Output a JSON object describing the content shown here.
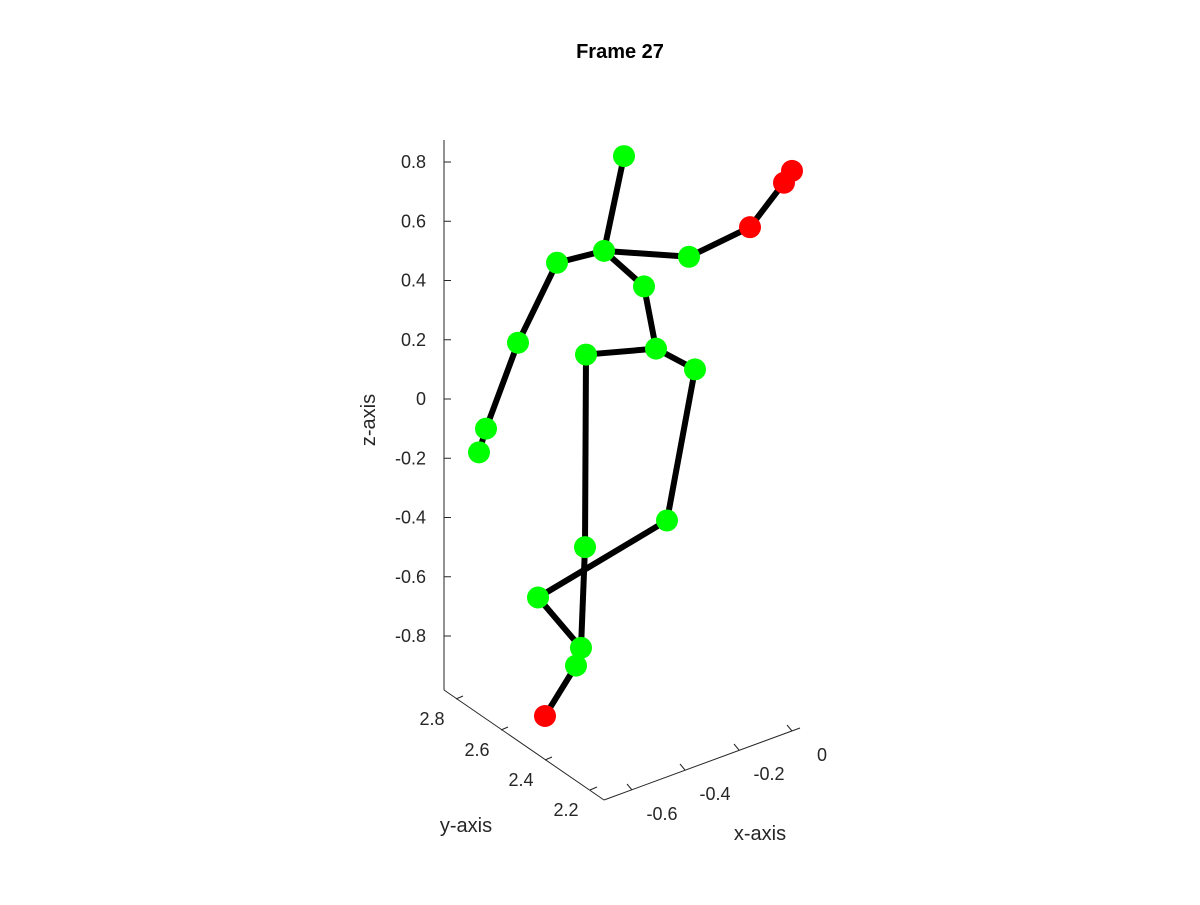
{
  "chart_data": {
    "type": "scatter3d",
    "title": "Frame 27",
    "xlabel": "x-axis",
    "ylabel": "y-axis",
    "zlabel": "z-axis",
    "xticks": [
      "-0.6",
      "-0.4",
      "-0.2",
      "0"
    ],
    "yticks": [
      "2.2",
      "2.4",
      "2.6",
      "2.8"
    ],
    "zticks": [
      "0.8",
      "0.6",
      "0.4",
      "0.2",
      "0",
      "-0.2",
      "-0.4",
      "-0.6",
      "-0.8"
    ],
    "zlim": [
      -1.0,
      0.87
    ],
    "colors": {
      "normal": "#00ff00",
      "highlight": "#ff0000",
      "bone": "#000000"
    },
    "joints": [
      {
        "id": "head",
        "z": 0.82,
        "status": "normal"
      },
      {
        "id": "neck",
        "z": 0.5,
        "status": "normal"
      },
      {
        "id": "left-shoulder",
        "z": 0.46,
        "status": "normal"
      },
      {
        "id": "left-elbow",
        "z": 0.19,
        "status": "normal"
      },
      {
        "id": "left-wrist",
        "z": -0.1,
        "status": "normal"
      },
      {
        "id": "left-hand",
        "z": -0.18,
        "status": "normal"
      },
      {
        "id": "right-shoulder",
        "z": 0.48,
        "status": "normal"
      },
      {
        "id": "right-elbow",
        "z": 0.58,
        "status": "highlight"
      },
      {
        "id": "right-wrist",
        "z": 0.73,
        "status": "highlight"
      },
      {
        "id": "right-hand",
        "z": 0.77,
        "status": "highlight"
      },
      {
        "id": "spine",
        "z": 0.38,
        "status": "normal"
      },
      {
        "id": "pelvis",
        "z": 0.17,
        "status": "normal"
      },
      {
        "id": "left-hip",
        "z": 0.15,
        "status": "normal"
      },
      {
        "id": "right-hip",
        "z": 0.1,
        "status": "normal"
      },
      {
        "id": "left-knee",
        "z": -0.5,
        "status": "normal"
      },
      {
        "id": "right-knee",
        "z": -0.41,
        "status": "normal"
      },
      {
        "id": "right-ankle",
        "z": -0.67,
        "status": "normal"
      },
      {
        "id": "left-ankle",
        "z": -0.84,
        "status": "normal"
      },
      {
        "id": "left-foot",
        "z": -0.9,
        "status": "normal"
      },
      {
        "id": "left-toe",
        "z": -1.07,
        "status": "highlight"
      }
    ],
    "bones": [
      [
        "head",
        "neck"
      ],
      [
        "neck",
        "left-shoulder"
      ],
      [
        "left-shoulder",
        "left-elbow"
      ],
      [
        "left-elbow",
        "left-wrist"
      ],
      [
        "left-wrist",
        "left-hand"
      ],
      [
        "neck",
        "right-shoulder"
      ],
      [
        "right-shoulder",
        "right-elbow"
      ],
      [
        "right-elbow",
        "right-wrist"
      ],
      [
        "right-wrist",
        "right-hand"
      ],
      [
        "neck",
        "spine"
      ],
      [
        "spine",
        "pelvis"
      ],
      [
        "pelvis",
        "left-hip"
      ],
      [
        "pelvis",
        "right-hip"
      ],
      [
        "left-hip",
        "left-knee"
      ],
      [
        "left-knee",
        "left-ankle"
      ],
      [
        "left-ankle",
        "left-foot"
      ],
      [
        "left-foot",
        "left-toe"
      ],
      [
        "right-hip",
        "right-knee"
      ],
      [
        "right-knee",
        "right-ankle"
      ],
      [
        "right-ankle",
        "left-ankle"
      ]
    ]
  }
}
